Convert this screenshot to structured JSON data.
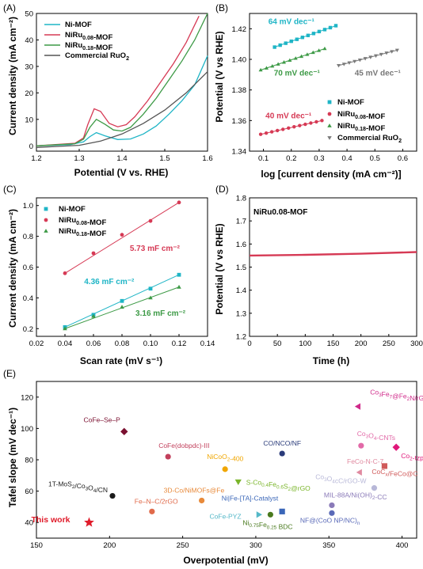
{
  "panels": [
    {
      "label": "(A)",
      "chart_data": {
        "type": "line",
        "xlabel": "Potential (V vs. RHE)",
        "ylabel": "Current density (mA cm⁻²)",
        "xlim": [
          1.2,
          1.6
        ],
        "ylim": [
          -2,
          50
        ],
        "xticks": [
          "1.2",
          "1.3",
          "1.4",
          "1.5",
          "1.6"
        ],
        "yticks": [
          "0",
          "10",
          "20",
          "30",
          "40",
          "50"
        ],
        "legend_position": "top-left",
        "series": [
          {
            "name": "Ni-MOF",
            "color": "#1fb5c6",
            "points": [
              [
                1.2,
                0
              ],
              [
                1.28,
                0.5
              ],
              [
                1.31,
                1.5
              ],
              [
                1.325,
                3.5
              ],
              [
                1.34,
                5
              ],
              [
                1.36,
                3.8
              ],
              [
                1.39,
                2.4
              ],
              [
                1.42,
                2.6
              ],
              [
                1.45,
                4.5
              ],
              [
                1.48,
                7.5
              ],
              [
                1.51,
                12
              ],
              [
                1.54,
                17
              ],
              [
                1.57,
                23
              ],
              [
                1.6,
                34
              ]
            ]
          },
          {
            "name": "NiRu0.08-MOF",
            "color": "#d63a55",
            "points": [
              [
                1.2,
                0
              ],
              [
                1.29,
                1
              ],
              [
                1.31,
                3
              ],
              [
                1.32,
                8
              ],
              [
                1.335,
                14
              ],
              [
                1.35,
                13
              ],
              [
                1.37,
                8.5
              ],
              [
                1.39,
                7.2
              ],
              [
                1.41,
                8
              ],
              [
                1.43,
                11
              ],
              [
                1.46,
                17
              ],
              [
                1.49,
                24
              ],
              [
                1.52,
                31
              ],
              [
                1.55,
                39
              ],
              [
                1.58,
                49
              ]
            ]
          },
          {
            "name": "NiRu0.18-MOF",
            "color": "#3d9a46",
            "points": [
              [
                1.2,
                0
              ],
              [
                1.29,
                0.8
              ],
              [
                1.31,
                2.5
              ],
              [
                1.325,
                7
              ],
              [
                1.34,
                10
              ],
              [
                1.36,
                8.2
              ],
              [
                1.38,
                6
              ],
              [
                1.4,
                5.6
              ],
              [
                1.42,
                7
              ],
              [
                1.45,
                12
              ],
              [
                1.48,
                18
              ],
              [
                1.51,
                25
              ],
              [
                1.54,
                32
              ],
              [
                1.57,
                40
              ],
              [
                1.6,
                50
              ]
            ]
          },
          {
            "name": "Commercial RuO2",
            "color": "#555555",
            "points": [
              [
                1.2,
                -0.6
              ],
              [
                1.3,
                0.2
              ],
              [
                1.35,
                1.8
              ],
              [
                1.4,
                4.5
              ],
              [
                1.45,
                8.5
              ],
              [
                1.5,
                13.5
              ],
              [
                1.55,
                20
              ],
              [
                1.6,
                28
              ]
            ]
          }
        ]
      }
    },
    {
      "label": "(B)",
      "chart_data": {
        "type": "scatter",
        "xlabel": "log [current density (mA cm⁻²)]",
        "ylabel": "Potential (V vs RHE)",
        "xlim": [
          0.05,
          0.65
        ],
        "ylim": [
          1.34,
          1.43
        ],
        "xticks": [
          "0.1",
          "0.2",
          "0.3",
          "0.4",
          "0.5",
          "0.6"
        ],
        "yticks": [
          "1.34",
          "1.36",
          "1.38",
          "1.40",
          "1.42"
        ],
        "legend_position": "bottom-right",
        "series": [
          {
            "name": "Ni-MOF",
            "color": "#1fb5c6",
            "marker": "square",
            "slope_label": "64 mV dec⁻¹",
            "x_range": [
              0.14,
              0.36
            ],
            "y_range": [
              1.408,
              1.422
            ]
          },
          {
            "name": "NiRu0.08-MOF",
            "color": "#d63a55",
            "marker": "circle",
            "slope_label": "40 mV dec⁻¹",
            "x_range": [
              0.09,
              0.31
            ],
            "y_range": [
              1.351,
              1.36
            ]
          },
          {
            "name": "NiRu0.18-MOF",
            "color": "#3d9a46",
            "marker": "triangle-up",
            "slope_label": "70 mV dec⁻¹",
            "x_range": [
              0.09,
              0.32
            ],
            "y_range": [
              1.393,
              1.407
            ]
          },
          {
            "name": "Commercial RuO2",
            "color": "#7a7a7a",
            "marker": "triangle-down",
            "slope_label": "45 mV dec⁻¹",
            "x_range": [
              0.37,
              0.58
            ],
            "y_range": [
              1.396,
              1.406
            ]
          }
        ]
      }
    },
    {
      "label": "(C)",
      "chart_data": {
        "type": "scatter",
        "xlabel": "Scan rate (mV s⁻¹)",
        "ylabel": "Current density (mA cm⁻²)",
        "xlim": [
          0.02,
          0.14
        ],
        "ylim": [
          0.15,
          1.05
        ],
        "xticks": [
          "0.02",
          "0.04",
          "0.06",
          "0.08",
          "0.10",
          "0.12",
          "0.14"
        ],
        "yticks": [
          "0.2",
          "0.4",
          "0.6",
          "0.8",
          "1.0"
        ],
        "legend_position": "top-left",
        "x": [
          0.04,
          0.06,
          0.08,
          0.1,
          0.12
        ],
        "series": [
          {
            "name": "Ni-MOF",
            "color": "#1fb5c6",
            "marker": "square",
            "values": [
              0.21,
              0.29,
              0.38,
              0.46,
              0.55
            ],
            "slope_label": "4.36 mF cm⁻²"
          },
          {
            "name": "NiRu0.08-MOF",
            "color": "#d63a55",
            "marker": "circle",
            "values": [
              0.56,
              0.69,
              0.81,
              0.9,
              1.02
            ],
            "slope_label": "5.73 mF cm⁻²"
          },
          {
            "name": "NiRu0.18-MOF",
            "color": "#3d9a46",
            "marker": "triangle-up",
            "values": [
              0.2,
              0.28,
              0.34,
              0.4,
              0.47
            ],
            "slope_label": "3.16 mF cm⁻²"
          }
        ]
      }
    },
    {
      "label": "(D)",
      "chart_data": {
        "type": "line",
        "xlabel": "Time (h)",
        "ylabel": "Potential (V vs RHE)",
        "xlim": [
          0,
          300
        ],
        "ylim": [
          1.2,
          1.8
        ],
        "xticks": [
          "0",
          "50",
          "100",
          "150",
          "200",
          "250",
          "300"
        ],
        "yticks": [
          "1.2",
          "1.3",
          "1.4",
          "1.5",
          "1.6",
          "1.7",
          "1.8"
        ],
        "annotation": "NiRu0.08-MOF",
        "series": [
          {
            "name": "NiRu0.08-MOF",
            "color": "#d63a55",
            "points": [
              [
                0,
                1.55
              ],
              [
                100,
                1.553
              ],
              [
                200,
                1.558
              ],
              [
                300,
                1.565
              ]
            ]
          }
        ]
      }
    },
    {
      "label": "(E)",
      "chart_data": {
        "type": "scatter",
        "xlabel": "Overpotential (mV)",
        "ylabel": "Tafel slope (mV dec⁻¹)",
        "xlim": [
          150,
          410
        ],
        "ylim": [
          30,
          130
        ],
        "xticks": [
          "150",
          "200",
          "250",
          "300",
          "350",
          "400"
        ],
        "yticks": [
          "40",
          "60",
          "80",
          "100",
          "120"
        ],
        "points": [
          {
            "label": "This work",
            "x": 186,
            "y": 40,
            "color": "#e01b2a",
            "marker": "star"
          },
          {
            "label": "CoFe–Se–P",
            "x": 210,
            "y": 98,
            "color": "#7a1030",
            "marker": "diamond"
          },
          {
            "label": "CoFe(dobpdc)-III",
            "x": 240,
            "y": 82,
            "color": "#c2405c",
            "marker": "circle"
          },
          {
            "label": "1T-MoS2/Co3O4/CN",
            "x": 202,
            "y": 57,
            "color": "#1a1a1a",
            "marker": "circle"
          },
          {
            "label": "Fe–N–C/2rGO",
            "x": 229,
            "y": 47,
            "color": "#e06a4a",
            "marker": "circle"
          },
          {
            "label": "NiCoO2-400",
            "x": 279,
            "y": 74,
            "color": "#f0a600",
            "marker": "circle"
          },
          {
            "label": "3D-Co/NiMOFs@Fe",
            "x": 263,
            "y": 54,
            "color": "#e88a3a",
            "marker": "circle"
          },
          {
            "label": "CO/NCO/NF",
            "x": 318,
            "y": 84,
            "color": "#2a3b7a",
            "marker": "circle"
          },
          {
            "label": "S-Co0.4Fe0.6S2@rGO",
            "x": 288,
            "y": 66,
            "color": "#7ab52a",
            "marker": "triangle-down"
          },
          {
            "label": "Ni|Fe-[TA]-Catalyst",
            "x": 318,
            "y": 47,
            "color": "#3a66b8",
            "marker": "square"
          },
          {
            "label": "CoFe-PYZ",
            "x": 302,
            "y": 45,
            "color": "#55b8c8",
            "marker": "triangle-right"
          },
          {
            "label": "Ni0.75Fe0.25 BDC",
            "x": 310,
            "y": 45,
            "color": "#4a7a1e",
            "marker": "circle"
          },
          {
            "label": "Co3Fe7@Fe2N/rGO",
            "x": 370,
            "y": 114,
            "color": "#d02a8a",
            "marker": "triangle-left"
          },
          {
            "label": "Co3O4-CNTs",
            "x": 372,
            "y": 89,
            "color": "#e26aa8",
            "marker": "circle"
          },
          {
            "label": "Co2-tzpa",
            "x": 396,
            "y": 88,
            "color": "#e0187a",
            "marker": "diamond"
          },
          {
            "label": "FeCo-N-C-7",
            "x": 371,
            "y": 72,
            "color": "#e08aa0",
            "marker": "triangle-left"
          },
          {
            "label": "CoCx/FeCo@C",
            "x": 388,
            "y": 76,
            "color": "#d05a5a",
            "marker": "square"
          },
          {
            "label": "Co3O4cC/rGO-W",
            "x": 381,
            "y": 62,
            "color": "#b8b8d8",
            "marker": "circle"
          },
          {
            "label": "MIL-88A/Ni(OH)2-CC",
            "x": 352,
            "y": 51,
            "color": "#8a7ab8",
            "marker": "circle"
          },
          {
            "label": "NF@(CoO NP/NC)n",
            "x": 352,
            "y": 46,
            "color": "#5a6ab8",
            "marker": "circle"
          }
        ]
      }
    }
  ]
}
